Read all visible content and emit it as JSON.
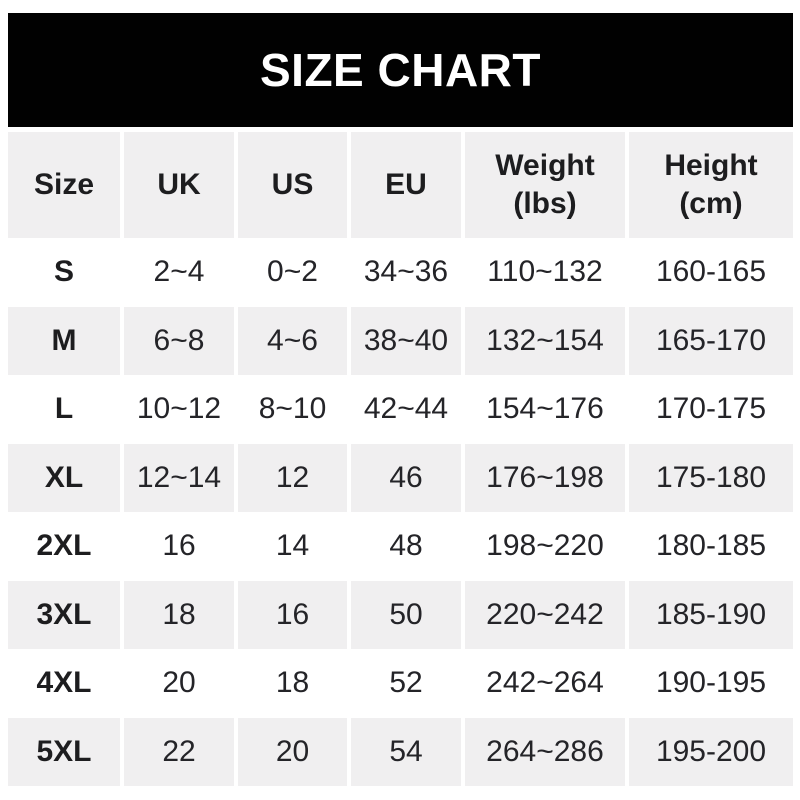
{
  "title": "SIZE CHART",
  "colors": {
    "banner_bg": "#010101",
    "banner_text": "#ffffff",
    "row_alt_bg": "#f0eff0",
    "row_bg": "#ffffff",
    "text": "#1d1d1f"
  },
  "chart_data": {
    "type": "table",
    "title": "SIZE CHART",
    "columns": [
      "Size",
      "UK",
      "US",
      "EU",
      "Weight\n(lbs)",
      "Height\n(cm)"
    ],
    "rows": [
      {
        "size": "S",
        "uk": "2~4",
        "us": "0~2",
        "eu": "34~36",
        "weight_lbs": "110~132",
        "height_cm": "160-165"
      },
      {
        "size": "M",
        "uk": "6~8",
        "us": "4~6",
        "eu": "38~40",
        "weight_lbs": "132~154",
        "height_cm": "165-170"
      },
      {
        "size": "L",
        "uk": "10~12",
        "us": "8~10",
        "eu": "42~44",
        "weight_lbs": "154~176",
        "height_cm": "170-175"
      },
      {
        "size": "XL",
        "uk": "12~14",
        "us": "12",
        "eu": "46",
        "weight_lbs": "176~198",
        "height_cm": "175-180"
      },
      {
        "size": "2XL",
        "uk": "16",
        "us": "14",
        "eu": "48",
        "weight_lbs": "198~220",
        "height_cm": "180-185"
      },
      {
        "size": "3XL",
        "uk": "18",
        "us": "16",
        "eu": "50",
        "weight_lbs": "220~242",
        "height_cm": "185-190"
      },
      {
        "size": "4XL",
        "uk": "20",
        "us": "18",
        "eu": "52",
        "weight_lbs": "242~264",
        "height_cm": "190-195"
      },
      {
        "size": "5XL",
        "uk": "22",
        "us": "20",
        "eu": "54",
        "weight_lbs": "264~286",
        "height_cm": "195-200"
      }
    ],
    "layout": {
      "header_background": "#f0eff0",
      "alternating_rows": true,
      "column_alignment": "center"
    }
  }
}
